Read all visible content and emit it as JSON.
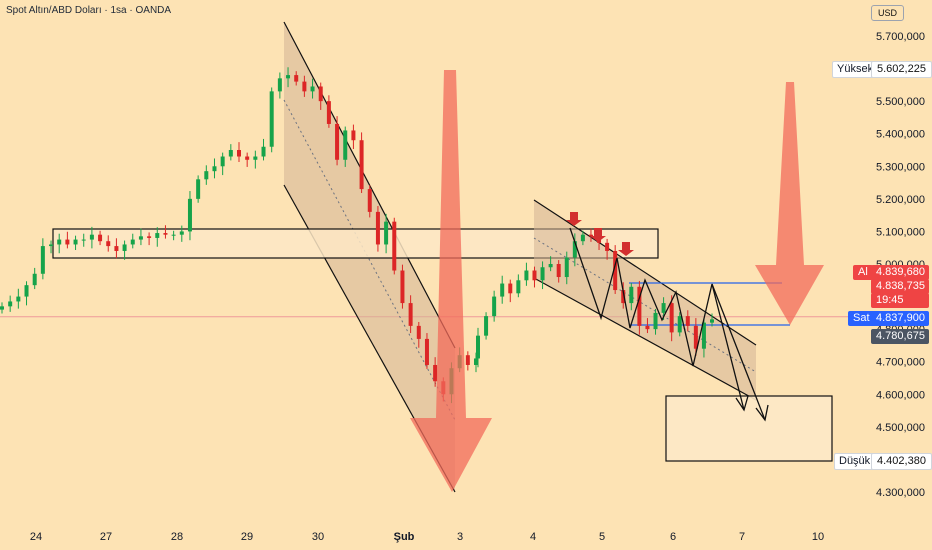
{
  "header": {
    "title": "Spot Altın/ABD Doları · 1sa · OANDA"
  },
  "currency": "USD",
  "colors": {
    "background": "#fde3b4",
    "up": "#16a34a",
    "down": "#dc2626",
    "channel_fill": "#d4b595",
    "zone_fill": "#fde8c6",
    "blue_line": "#2563eb",
    "arrow_red": "#f26b5b",
    "marker_red": "#d32f2f",
    "ask_badge": "#ef4444",
    "bid_badge": "#2962ff"
  },
  "price_axis": {
    "ticks": [
      "5.700,000",
      "5.600,000",
      "5.500,000",
      "5.400,000",
      "5.300,000",
      "5.200,000",
      "5.100,000",
      "5.000,000",
      "4.900,000",
      "4.800,000",
      "4.700,000",
      "4.600,000",
      "4.500,000",
      "4.400,000",
      "4.300,000"
    ],
    "tick_values": [
      5700,
      5600,
      5500,
      5400,
      5300,
      5200,
      5100,
      5000,
      4900,
      4800,
      4700,
      4600,
      4500,
      4400,
      4300
    ]
  },
  "time_axis": {
    "labels": [
      "24",
      "27",
      "28",
      "29",
      "30",
      "Şub",
      "3",
      "4",
      "5",
      "6",
      "7",
      "10"
    ]
  },
  "badges": {
    "high": {
      "label": "Yüksek",
      "value": "5.602,225"
    },
    "low": {
      "label": "Düşük",
      "value": "4.402,380"
    },
    "ask": {
      "label": "Al",
      "value": "4.839,680",
      "value2": "4.838,735",
      "countdown": "19:45"
    },
    "bid": {
      "label": "Sat",
      "value": "4.837,900"
    },
    "last": {
      "value": "4.780,675"
    }
  },
  "chart_data": {
    "type": "candlestick",
    "title": "Spot Altın/ABD Doları · 1sa · OANDA",
    "y_unit": "USD",
    "ylim": [
      4220,
      5770
    ],
    "x_categories": [
      "24",
      "27",
      "28",
      "29",
      "30",
      "Şub",
      "3",
      "4",
      "5",
      "6",
      "7",
      "10"
    ],
    "price_path": [
      4870,
      4885,
      4900,
      4935,
      4970,
      5055,
      5060,
      5075,
      5060,
      5075,
      5075,
      5090,
      5070,
      5055,
      5040,
      5060,
      5075,
      5085,
      5080,
      5095,
      5090,
      5090,
      5100,
      5200,
      5260,
      5285,
      5300,
      5330,
      5350,
      5330,
      5320,
      5330,
      5360,
      5530,
      5570,
      5580,
      5560,
      5530,
      5545,
      5500,
      5430,
      5320,
      5410,
      5380,
      5230,
      5160,
      5060,
      5130,
      4980,
      4880,
      4810,
      4770,
      4690,
      4640,
      4600,
      4680,
      4720,
      4690,
      4710,
      4780,
      4840,
      4900,
      4940,
      4910,
      4950,
      4980,
      4950,
      4990,
      5000,
      4960,
      5020,
      5070,
      5090,
      5085,
      5065,
      5040,
      4920,
      4880,
      4930,
      4810,
      4800,
      4850,
      4880,
      4790,
      4840,
      4810,
      4740,
      4820,
      4830
    ],
    "high": 5602.225,
    "low": 4402.38,
    "ask": 4839.68,
    "bid": 4837.9,
    "last": 4780.675,
    "grid": false
  }
}
